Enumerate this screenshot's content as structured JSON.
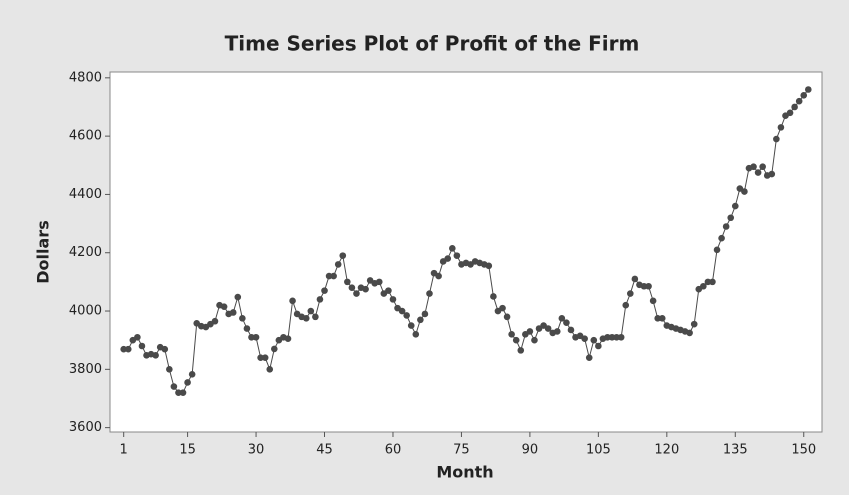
{
  "chart_data": {
    "type": "line",
    "title": "Time Series Plot of Profit of the Firm",
    "x_label": "Month",
    "y_label": "Dollars",
    "color": "#4a4a4a",
    "x": [
      1,
      2,
      3,
      4,
      5,
      6,
      7,
      8,
      9,
      10,
      11,
      12,
      13,
      14,
      15,
      16,
      17,
      18,
      19,
      20,
      21,
      22,
      23,
      24,
      25,
      26,
      27,
      28,
      29,
      30,
      31,
      32,
      33,
      34,
      35,
      36,
      37,
      38,
      39,
      40,
      41,
      42,
      43,
      44,
      45,
      46,
      47,
      48,
      49,
      50,
      51,
      52,
      53,
      54,
      55,
      56,
      57,
      58,
      59,
      60,
      61,
      62,
      63,
      64,
      65,
      66,
      67,
      68,
      69,
      70,
      71,
      72,
      73,
      74,
      75,
      76,
      77,
      78,
      79,
      80,
      81,
      82,
      83,
      84,
      85,
      86,
      87,
      88,
      89,
      90,
      91,
      92,
      93,
      94,
      95,
      96,
      97,
      98,
      99,
      100,
      101,
      102,
      103,
      104,
      105,
      106,
      107,
      108,
      109,
      110,
      111,
      112,
      113,
      114,
      115,
      116,
      117,
      118,
      119,
      120,
      121,
      122,
      123,
      124,
      125,
      126,
      127,
      128,
      129,
      130,
      131,
      132,
      133,
      134,
      135,
      136,
      137,
      138,
      139,
      140,
      141,
      142,
      143,
      144,
      145,
      146,
      147,
      148,
      149,
      150,
      151
    ],
    "values": [
      3869,
      3869,
      3900,
      3910,
      3880,
      3848,
      3852,
      3848,
      3876,
      3869,
      3800,
      3741,
      3720,
      3720,
      3755,
      3783,
      3958,
      3948,
      3945,
      3955,
      3965,
      4020,
      4015,
      3990,
      3995,
      4048,
      3975,
      3940,
      3910,
      3910,
      3840,
      3840,
      3800,
      3870,
      3900,
      3910,
      3905,
      4035,
      3990,
      3980,
      3975,
      4000,
      3980,
      4040,
      4070,
      4120,
      4120,
      4160,
      4190,
      4100,
      4080,
      4060,
      4080,
      4075,
      4105,
      4095,
      4100,
      4060,
      4070,
      4040,
      4010,
      4000,
      3985,
      3950,
      3920,
      3970,
      3990,
      4060,
      4130,
      4120,
      4170,
      4180,
      4215,
      4190,
      4160,
      4165,
      4160,
      4170,
      4165,
      4160,
      4155,
      4050,
      4000,
      4010,
      3980,
      3920,
      3900,
      3865,
      3920,
      3930,
      3900,
      3940,
      3950,
      3940,
      3925,
      3930,
      3975,
      3960,
      3935,
      3910,
      3915,
      3905,
      3840,
      3900,
      3880,
      3905,
      3910,
      3910,
      3910,
      3910,
      4020,
      4060,
      4110,
      4090,
      4085,
      4085,
      4035,
      3975,
      3975,
      3950,
      3945,
      3940,
      3935,
      3930,
      3925,
      3955,
      4075,
      4085,
      4100,
      4100,
      4210,
      4250,
      4290,
      4320,
      4360,
      4420,
      4410,
      4490,
      4495,
      4475,
      4495,
      4465,
      4470,
      4590,
      4630,
      4670,
      4680,
      4700,
      4720,
      4740,
      4760
    ],
    "xlim": [
      -2,
      154
    ],
    "xticks": [
      1,
      15,
      30,
      45,
      60,
      75,
      90,
      105,
      120,
      135,
      150
    ],
    "ylim": [
      3585,
      4820
    ],
    "yticks": [
      3600,
      3800,
      4000,
      4200,
      4400,
      4600,
      4800
    ]
  }
}
